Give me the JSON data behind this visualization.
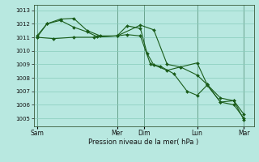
{
  "background_color": "#b8e8e0",
  "grid_color": "#88ccbb",
  "line_color": "#1a5c1a",
  "ylim": [
    1004.4,
    1013.4
  ],
  "yticks": [
    1005,
    1006,
    1007,
    1008,
    1009,
    1010,
    1011,
    1012,
    1013
  ],
  "x_day_labels": [
    "Sam",
    "Mer",
    "Dim",
    "Lun",
    "Mar"
  ],
  "x_day_positions": [
    0.5,
    12.5,
    16.5,
    24.5,
    31.5
  ],
  "x_vlines": [
    0.5,
    12.5,
    16.5,
    24.5,
    31.5
  ],
  "xlim": [
    0,
    33
  ],
  "xlabel": "Pression niveau de la mer( hPa )",
  "series": [
    {
      "x": [
        0.5,
        3,
        6,
        9,
        12.5,
        16,
        18,
        20,
        22,
        24.5,
        26,
        28,
        30,
        31.5
      ],
      "y": [
        1011.0,
        1010.9,
        1011.0,
        1011.0,
        1011.1,
        1011.9,
        1011.55,
        1009.0,
        1008.8,
        1008.2,
        1007.5,
        1006.5,
        1006.3,
        1004.9
      ]
    },
    {
      "x": [
        0.5,
        2,
        4,
        6,
        8,
        9.5,
        12.5,
        14,
        16,
        17,
        18,
        20,
        22,
        24.5,
        26,
        28,
        30,
        31.5
      ],
      "y": [
        1011.1,
        1012.0,
        1012.25,
        1011.75,
        1011.4,
        1011.05,
        1011.1,
        1011.85,
        1011.65,
        1009.8,
        1008.95,
        1008.55,
        1008.8,
        1009.1,
        1007.5,
        1006.2,
        1006.3,
        1005.3
      ]
    },
    {
      "x": [
        0.5,
        2,
        4,
        6,
        8,
        10,
        12.5,
        14,
        16,
        17.5,
        19,
        21,
        23,
        24.5,
        26,
        28,
        30,
        31.5
      ],
      "y": [
        1011.0,
        1012.0,
        1012.35,
        1012.4,
        1011.5,
        1011.1,
        1011.1,
        1011.2,
        1011.1,
        1009.0,
        1008.85,
        1008.3,
        1007.0,
        1006.7,
        1007.45,
        1006.2,
        1006.0,
        1005.0
      ]
    }
  ],
  "figsize": [
    3.2,
    2.0
  ],
  "dpi": 100
}
